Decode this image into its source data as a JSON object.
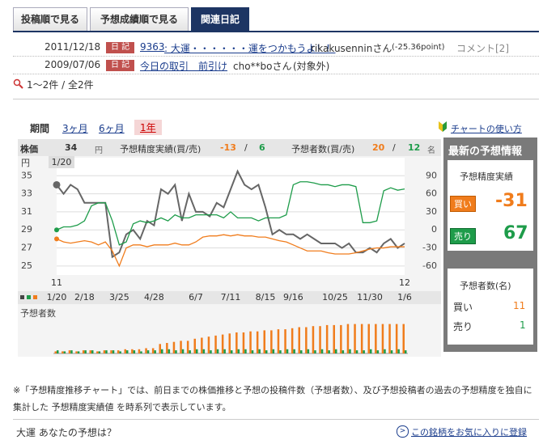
{
  "tabs": [
    "投稿順で見る",
    "予想成績順で見る",
    "関連日記"
  ],
  "diary": [
    {
      "date": "2011/12/18",
      "badge": "日 記",
      "code": "9363",
      "title": ": 大運・・・・・・運をつかもうよ！！",
      "user": "rikakusenninさん",
      "point": "(-25.36point)",
      "comment": "コメント[2]"
    },
    {
      "date": "2009/07/06",
      "badge": "日 記",
      "title": "今日の取引　前引け",
      "user": "cho**boさん",
      "point": "(対象外)"
    }
  ],
  "result_count": "1〜2件 / 全2件",
  "period": {
    "label": "期間",
    "options": [
      "3ヶ月",
      "6ヶ月",
      "1年"
    ]
  },
  "chart_help": "チャートの使い方",
  "summary": {
    "price_label": "株価",
    "price": 34,
    "price_unit": "円",
    "accuracy_label": "予想精度実績(買/売)",
    "accuracy_buy": -13,
    "sep": "/",
    "accuracy_sell": 6,
    "forecasters_label": "予想者数(買/売)",
    "forecasters_buy": 20,
    "forecasters_sell": 12,
    "forecasters_unit": "名"
  },
  "latest": {
    "title": "最新の予想情報",
    "accuracy_title": "予想精度実績",
    "buy_label": "買い",
    "sell_label": "売り",
    "accuracy_buy": -31,
    "accuracy_sell": 67,
    "count_title": "予想者数(名)",
    "count_buy": 11,
    "count_sell": 1
  },
  "note": "※「予想精度推移チャート」では、前日までの株価推移と予想の投稿件数（予想者数）、及び予想投稿者の過去の予想精度を独自に集計した 予想精度実績値 を時系列で表示しています。",
  "footer": {
    "question": "大運 あなたの予想は？",
    "favorite": "この銘柄をお気に入りに登録"
  },
  "chart_data": [
    {
      "type": "line",
      "y_unit": "円",
      "cursor_label": "1/20",
      "year_labels": [
        "11",
        "12"
      ],
      "categories": [
        "1/20",
        null,
        null,
        null,
        "2/18",
        null,
        null,
        null,
        null,
        "3/25",
        null,
        null,
        null,
        null,
        "4/28",
        null,
        null,
        null,
        null,
        null,
        "6/7",
        null,
        null,
        null,
        null,
        "7/11",
        null,
        null,
        null,
        null,
        "8/15",
        null,
        null,
        null,
        "9/16",
        null,
        null,
        null,
        null,
        null,
        "10/25",
        null,
        null,
        null,
        null,
        "11/30",
        null,
        null,
        null,
        null,
        "1/6"
      ],
      "ylim": [
        24,
        37
      ],
      "yticks": [
        25,
        27,
        29,
        31,
        33,
        35
      ],
      "y2lim": [
        -75,
        120
      ],
      "y2ticks": [
        -60,
        -30,
        0,
        30,
        60,
        90
      ],
      "grid": true,
      "series": [
        {
          "color": "#666666",
          "values": [
            34,
            33,
            34,
            33.5,
            32,
            32,
            32,
            32,
            26,
            26.5,
            28.5,
            29,
            28,
            30,
            29.5,
            33.5,
            33,
            34,
            30,
            33,
            31,
            31,
            30.5,
            32,
            31.5,
            33.5,
            35.5,
            34,
            33.5,
            34,
            31.5,
            28.5,
            29,
            28.5,
            28.5,
            28,
            28.5,
            28,
            27.5,
            27.5,
            27.5,
            27,
            27.5,
            26.5,
            26.5,
            27,
            26.5,
            27.5,
            28,
            27,
            27.5
          ]
        },
        {
          "axis": "y2",
          "color": "#1e9c4a",
          "values": [
            0,
            5,
            5,
            8,
            15,
            40,
            45,
            45,
            15,
            -25,
            -20,
            10,
            15,
            12,
            15,
            20,
            15,
            25,
            20,
            20,
            25,
            25,
            25,
            25,
            20,
            30,
            20,
            20,
            20,
            15,
            20,
            20,
            20,
            25,
            75,
            80,
            80,
            78,
            75,
            75,
            72,
            75,
            75,
            72,
            12,
            12,
            15,
            65,
            70,
            66,
            68
          ]
        },
        {
          "axis": "y2",
          "color": "#f07c1c",
          "values": [
            -15,
            -20,
            -22,
            -20,
            -18,
            -20,
            -25,
            -20,
            -35,
            -60,
            -30,
            -25,
            -25,
            -28,
            -25,
            -25,
            -25,
            -22,
            -25,
            -25,
            -20,
            -12,
            -10,
            -10,
            -8,
            -10,
            -8,
            -10,
            -10,
            -12,
            -12,
            -15,
            -18,
            -20,
            -25,
            -30,
            -35,
            -35,
            -35,
            -38,
            -40,
            -40,
            -40,
            -38,
            -35,
            -32,
            -30,
            -30,
            -28,
            -28,
            -28
          ]
        }
      ]
    },
    {
      "type": "bar",
      "title": "予想者数",
      "ylim": [
        0,
        30
      ],
      "series": [
        {
          "color": "#f07c1c",
          "values": [
            2,
            2,
            3,
            2,
            3,
            3,
            2,
            3,
            3,
            3,
            4,
            4,
            4,
            5,
            5,
            9,
            10,
            11,
            12,
            12,
            14,
            15,
            16,
            17,
            18,
            19,
            20,
            20,
            21,
            21,
            22,
            22,
            23,
            23,
            24,
            25,
            25,
            26,
            26,
            27,
            27,
            27,
            28,
            28,
            28,
            28,
            28,
            28,
            28,
            28,
            28
          ]
        },
        {
          "color": "#1e9c4a",
          "values": [
            3,
            2,
            3,
            2,
            3,
            3,
            2,
            3,
            3,
            2,
            3,
            3,
            2,
            3,
            3,
            4,
            4,
            3,
            4,
            3,
            4,
            4,
            3,
            4,
            4,
            3,
            4,
            4,
            3,
            4,
            3,
            4,
            3,
            4,
            4,
            3,
            4,
            3,
            4,
            3,
            4,
            3,
            4,
            3,
            3,
            4,
            3,
            4,
            3,
            4,
            3
          ]
        }
      ]
    }
  ]
}
